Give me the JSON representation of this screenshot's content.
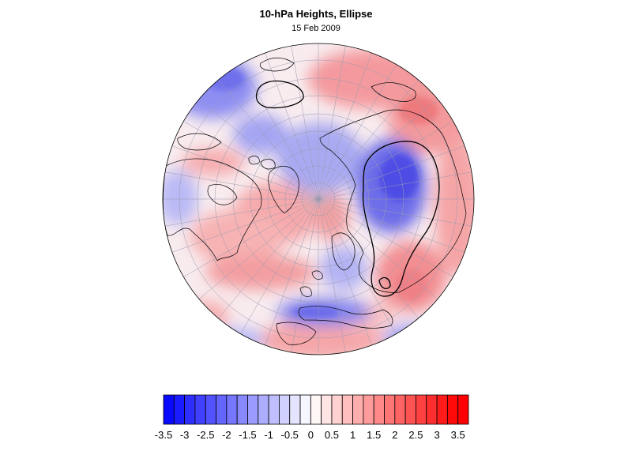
{
  "map": {
    "title": "10-hPa Heights, Ellipse",
    "subtitle": "15 Feb 2009",
    "projection": "orthographic north polar",
    "colors": {
      "negative_max": "#0000ff",
      "positive_max": "#ff0000",
      "neutral": "#ffffff",
      "land_outline": "#000000",
      "grid": "#9a9ab0"
    }
  },
  "colorbar": {
    "levels": [
      -3.5,
      -3.25,
      -3,
      -2.75,
      -2.5,
      -2.25,
      -2,
      -1.75,
      -1.5,
      -1.25,
      -1,
      -0.75,
      -0.5,
      -0.25,
      0,
      0.25,
      0.5,
      0.75,
      1,
      1.25,
      1.5,
      1.75,
      2,
      2.25,
      2.5,
      2.75,
      3,
      3.25,
      3.5,
      3.75
    ],
    "tick_labels": [
      "-3.5",
      "-3",
      "-2.5",
      "-2",
      "-1.5",
      "-1",
      "-0.5",
      "0",
      "0.5",
      "1",
      "1.5",
      "2",
      "2.5",
      "3",
      "3.5"
    ]
  }
}
